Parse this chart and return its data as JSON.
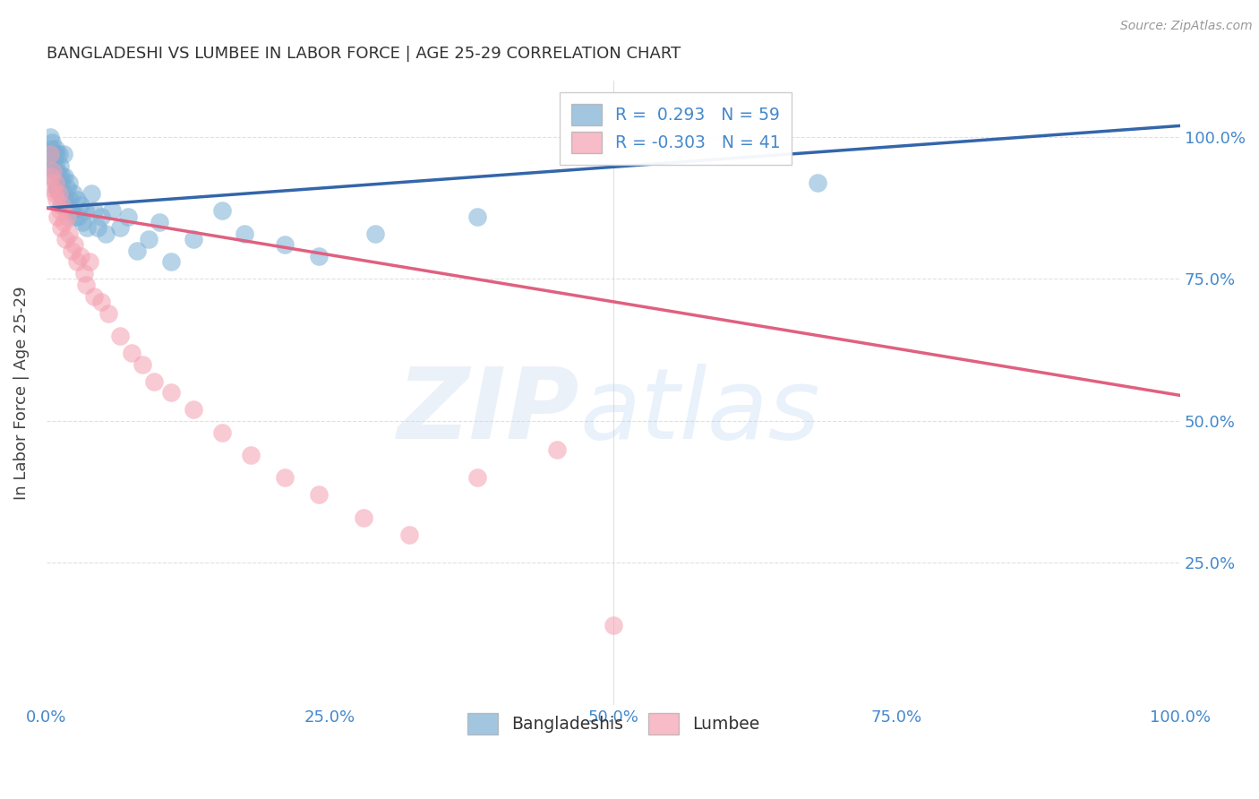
{
  "title": "BANGLADESHI VS LUMBEE IN LABOR FORCE | AGE 25-29 CORRELATION CHART",
  "source_text": "Source: ZipAtlas.com",
  "ylabel": "In Labor Force | Age 25-29",
  "xlim": [
    0.0,
    1.0
  ],
  "ylim": [
    0.0,
    1.1
  ],
  "ytick_labels": [
    "25.0%",
    "50.0%",
    "75.0%",
    "100.0%"
  ],
  "ytick_values": [
    0.25,
    0.5,
    0.75,
    1.0
  ],
  "xtick_labels": [
    "0.0%",
    "25.0%",
    "50.0%",
    "75.0%",
    "100.0%"
  ],
  "xtick_values": [
    0.0,
    0.25,
    0.5,
    0.75,
    1.0
  ],
  "bangladeshi_R": 0.293,
  "bangladeshi_N": 59,
  "lumbee_R": -0.303,
  "lumbee_N": 41,
  "blue_color": "#7BAFD4",
  "pink_color": "#F4A0B0",
  "blue_line_color": "#3366AA",
  "pink_line_color": "#E06080",
  "title_color": "#333333",
  "axis_label_color": "#444444",
  "tick_color": "#4488CC",
  "grid_color": "#DDDDDD",
  "legend_R_color": "#4488CC",
  "bd_x": [
    0.003,
    0.003,
    0.004,
    0.005,
    0.005,
    0.006,
    0.006,
    0.007,
    0.007,
    0.008,
    0.008,
    0.009,
    0.009,
    0.01,
    0.01,
    0.011,
    0.011,
    0.012,
    0.012,
    0.013,
    0.013,
    0.014,
    0.015,
    0.015,
    0.016,
    0.017,
    0.018,
    0.019,
    0.02,
    0.021,
    0.022,
    0.024,
    0.025,
    0.027,
    0.028,
    0.03,
    0.032,
    0.034,
    0.036,
    0.04,
    0.042,
    0.045,
    0.048,
    0.052,
    0.058,
    0.065,
    0.072,
    0.08,
    0.09,
    0.1,
    0.11,
    0.13,
    0.155,
    0.175,
    0.21,
    0.24,
    0.29,
    0.38,
    0.68
  ],
  "bd_y": [
    1.0,
    0.97,
    0.98,
    0.95,
    0.99,
    0.96,
    0.93,
    0.97,
    0.94,
    0.98,
    0.95,
    0.91,
    0.97,
    0.94,
    0.91,
    0.97,
    0.93,
    0.9,
    0.95,
    0.92,
    0.88,
    0.93,
    0.97,
    0.9,
    0.93,
    0.89,
    0.91,
    0.88,
    0.92,
    0.89,
    0.87,
    0.9,
    0.86,
    0.89,
    0.86,
    0.88,
    0.85,
    0.87,
    0.84,
    0.9,
    0.87,
    0.84,
    0.86,
    0.83,
    0.87,
    0.84,
    0.86,
    0.8,
    0.82,
    0.85,
    0.78,
    0.82,
    0.87,
    0.83,
    0.81,
    0.79,
    0.83,
    0.86,
    0.92
  ],
  "lu_x": [
    0.003,
    0.004,
    0.005,
    0.006,
    0.007,
    0.008,
    0.009,
    0.01,
    0.011,
    0.012,
    0.013,
    0.014,
    0.015,
    0.017,
    0.018,
    0.02,
    0.022,
    0.025,
    0.027,
    0.03,
    0.033,
    0.035,
    0.038,
    0.042,
    0.048,
    0.055,
    0.065,
    0.075,
    0.085,
    0.095,
    0.11,
    0.13,
    0.155,
    0.18,
    0.21,
    0.24,
    0.28,
    0.32,
    0.38,
    0.45,
    0.5
  ],
  "lu_y": [
    0.97,
    0.93,
    0.91,
    0.94,
    0.9,
    0.92,
    0.89,
    0.86,
    0.9,
    0.87,
    0.84,
    0.88,
    0.85,
    0.82,
    0.86,
    0.83,
    0.8,
    0.81,
    0.78,
    0.79,
    0.76,
    0.74,
    0.78,
    0.72,
    0.71,
    0.69,
    0.65,
    0.62,
    0.6,
    0.57,
    0.55,
    0.52,
    0.48,
    0.44,
    0.4,
    0.37,
    0.33,
    0.3,
    0.4,
    0.45,
    0.14
  ],
  "bd_line_x0": 0.0,
  "bd_line_x1": 1.0,
  "bd_line_y0": 0.875,
  "bd_line_y1": 1.02,
  "lu_line_x0": 0.0,
  "lu_line_x1": 1.0,
  "lu_line_y0": 0.875,
  "lu_line_y1": 0.545
}
